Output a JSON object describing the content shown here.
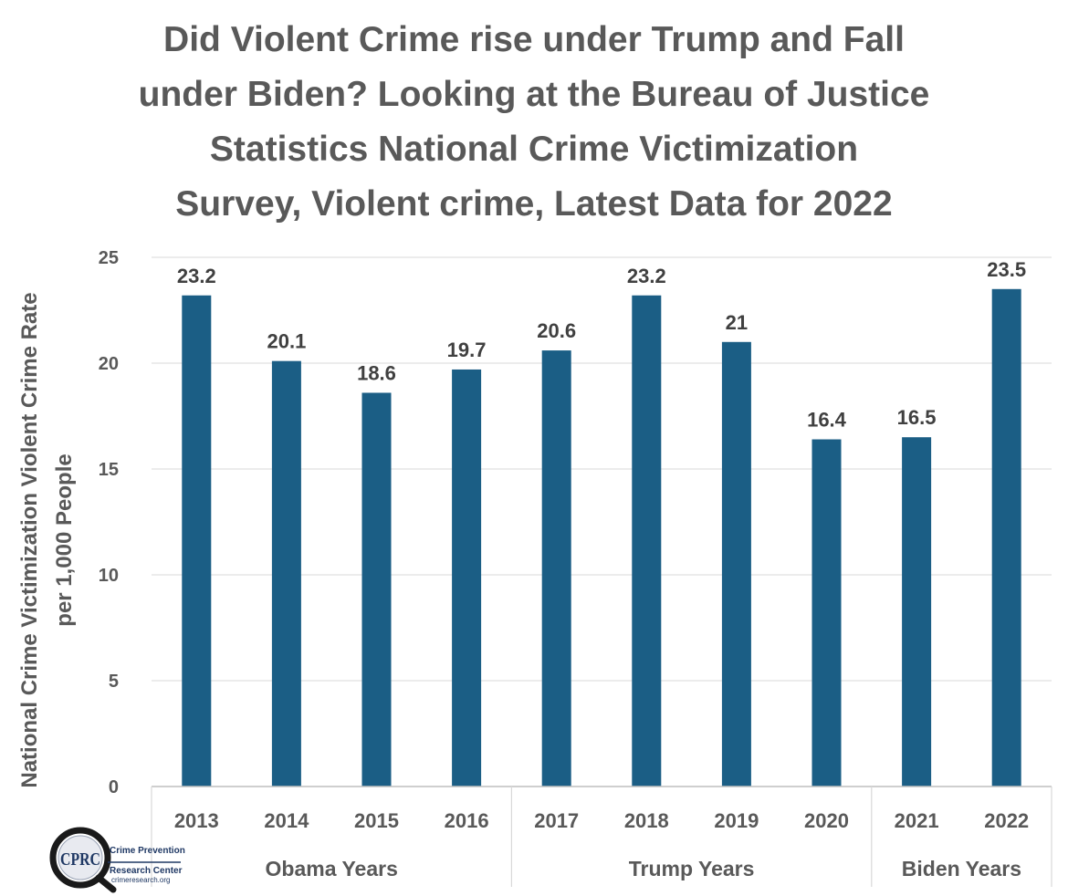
{
  "chart_data": {
    "type": "bar",
    "title_lines": [
      "Did Violent Crime rise under Trump and Fall",
      "under Biden? Looking at the Bureau of Justice",
      "Statistics National Crime Victimization",
      "Survey, Violent crime, Latest Data for 2022"
    ],
    "ylabel_lines": [
      "National Crime Victimization Violent Crime Rate",
      "per 1,000 People"
    ],
    "xlabel": "",
    "categories": [
      "2013",
      "2014",
      "2015",
      "2016",
      "2017",
      "2018",
      "2019",
      "2020",
      "2021",
      "2022"
    ],
    "values": [
      23.2,
      20.1,
      18.6,
      19.7,
      20.6,
      23.2,
      21,
      16.4,
      16.5,
      23.5
    ],
    "data_labels": [
      "23.2",
      "20.1",
      "18.6",
      "19.7",
      "20.6",
      "23.2",
      "21",
      "16.4",
      "16.5",
      "23.5"
    ],
    "groups": [
      {
        "label": "Obama Years",
        "count": 4
      },
      {
        "label": "Trump Years",
        "count": 4
      },
      {
        "label": "Biden Years",
        "count": 2
      }
    ],
    "ylim": [
      0,
      25
    ],
    "yticks": [
      0,
      5,
      10,
      15,
      20,
      25
    ],
    "grid": true,
    "bar_color": "#1b5e85",
    "grid_color": "#d9d9d9"
  },
  "logo": {
    "initials": "CPRC",
    "name_line1": "Crime Prevention",
    "name_line2": "Research Center",
    "url": "crimeresearch.org"
  }
}
